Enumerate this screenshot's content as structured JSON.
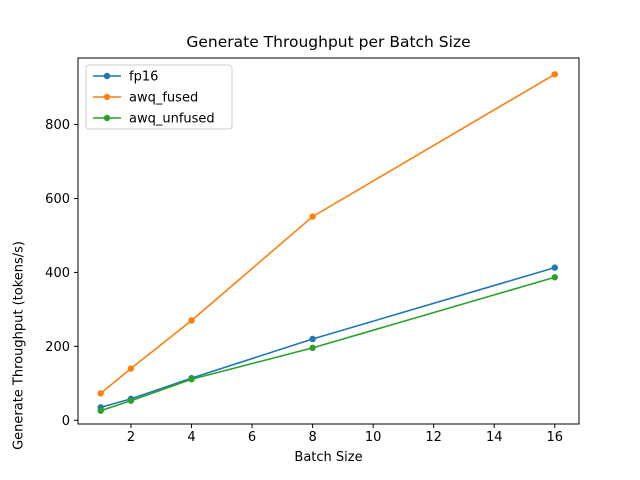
{
  "figure": {
    "background": "#ffffff",
    "text_color": "#000000",
    "spine_color": "#000000",
    "legend_border_color": "#cccccc"
  },
  "chart_data": {
    "type": "line",
    "title": "Generate Throughput per Batch Size",
    "xlabel": "Batch Size",
    "ylabel": "Generate Throughput (tokens/s)",
    "x": [
      1,
      2,
      4,
      8,
      16
    ],
    "series": [
      {
        "name": "fp16",
        "color": "#1f77b4",
        "values": [
          35,
          58,
          114,
          220,
          413
        ]
      },
      {
        "name": "awq_fused",
        "color": "#ff7f0e",
        "values": [
          73,
          140,
          270,
          551,
          936
        ]
      },
      {
        "name": "awq_unfused",
        "color": "#2ca02c",
        "values": [
          26,
          53,
          111,
          196,
          387
        ]
      }
    ],
    "xticks": [
      2,
      4,
      6,
      8,
      10,
      12,
      14,
      16
    ],
    "yticks": [
      0,
      200,
      400,
      600,
      800
    ],
    "xlim": [
      0.25,
      16.8
    ],
    "ylim": [
      -10,
      980
    ],
    "grid": false,
    "legend_position": "upper-left",
    "marker": "circle"
  }
}
